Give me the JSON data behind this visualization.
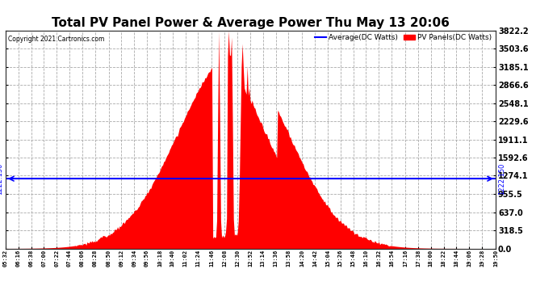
{
  "title": "Total PV Panel Power & Average Power Thu May 13 20:06",
  "copyright": "Copyright 2021 Cartronics.com",
  "ylabel_right_ticks": [
    0.0,
    318.5,
    637.0,
    955.5,
    1274.1,
    1592.6,
    1911.1,
    2229.6,
    2548.1,
    2866.6,
    3185.1,
    3503.6,
    3822.2
  ],
  "ymin": 0.0,
  "ymax": 3822.2,
  "average_value": 1222.15,
  "average_label": "1222.150",
  "legend_avg": "Average(DC Watts)",
  "legend_pv": "PV Panels(DC Watts)",
  "avg_color": "#0000ff",
  "pv_color": "#ff0000",
  "background_color": "#ffffff",
  "grid_color": "#aaaaaa",
  "title_fontsize": 11,
  "x_labels": [
    "05:32",
    "06:16",
    "06:38",
    "07:00",
    "07:22",
    "07:44",
    "08:06",
    "08:28",
    "08:50",
    "09:12",
    "09:34",
    "09:56",
    "10:18",
    "10:40",
    "11:02",
    "11:24",
    "11:46",
    "12:08",
    "12:30",
    "12:52",
    "13:14",
    "13:36",
    "13:58",
    "14:20",
    "14:42",
    "15:04",
    "15:26",
    "15:48",
    "16:10",
    "16:32",
    "16:54",
    "17:16",
    "17:38",
    "18:00",
    "18:22",
    "18:44",
    "19:06",
    "19:28",
    "19:50"
  ]
}
